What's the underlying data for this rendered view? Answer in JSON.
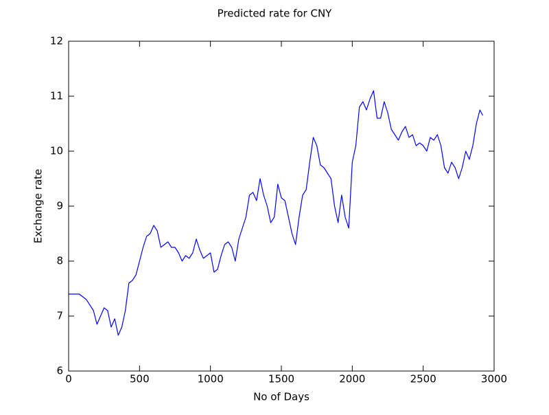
{
  "chart_data": {
    "type": "line",
    "title": "Predicted rate for CNY",
    "xlabel": "No of Days",
    "ylabel": "Exchange rate",
    "xlim": [
      0,
      3000
    ],
    "ylim": [
      6,
      12
    ],
    "xticks": [
      0,
      500,
      1000,
      1500,
      2000,
      2500,
      3000
    ],
    "yticks": [
      6,
      7,
      8,
      9,
      10,
      11,
      12
    ],
    "series": [
      {
        "color": "#0000ff",
        "x": [
          0,
          25,
          50,
          75,
          100,
          125,
          150,
          175,
          200,
          225,
          250,
          275,
          300,
          325,
          350,
          375,
          400,
          425,
          450,
          475,
          500,
          525,
          550,
          575,
          600,
          625,
          650,
          675,
          700,
          725,
          750,
          775,
          800,
          825,
          850,
          875,
          900,
          925,
          950,
          975,
          1000,
          1025,
          1050,
          1075,
          1100,
          1125,
          1150,
          1175,
          1200,
          1225,
          1250,
          1275,
          1300,
          1325,
          1350,
          1375,
          1400,
          1425,
          1450,
          1475,
          1500,
          1525,
          1550,
          1575,
          1600,
          1625,
          1650,
          1675,
          1700,
          1725,
          1750,
          1775,
          1800,
          1825,
          1850,
          1875,
          1900,
          1925,
          1950,
          1975,
          2000,
          2025,
          2050,
          2075,
          2100,
          2125,
          2150,
          2175,
          2200,
          2225,
          2250,
          2275,
          2300,
          2325,
          2350,
          2375,
          2400,
          2425,
          2450,
          2475,
          2500,
          2525,
          2550,
          2575,
          2600,
          2625,
          2650,
          2675,
          2700,
          2725,
          2750,
          2775,
          2800,
          2825,
          2850,
          2875,
          2900,
          2920
        ],
        "values": [
          7.4,
          7.4,
          7.4,
          7.4,
          7.35,
          7.3,
          7.2,
          7.1,
          6.85,
          7.0,
          7.15,
          7.1,
          6.8,
          6.95,
          6.65,
          6.8,
          7.1,
          7.6,
          7.65,
          7.75,
          8.0,
          8.25,
          8.45,
          8.5,
          8.65,
          8.55,
          8.25,
          8.3,
          8.35,
          8.25,
          8.25,
          8.15,
          8.0,
          8.1,
          8.05,
          8.15,
          8.4,
          8.2,
          8.05,
          8.1,
          8.15,
          7.8,
          7.85,
          8.1,
          8.3,
          8.35,
          8.25,
          8.0,
          8.4,
          8.6,
          8.8,
          9.2,
          9.25,
          9.1,
          9.5,
          9.2,
          9.0,
          8.7,
          8.8,
          9.4,
          9.15,
          9.1,
          8.8,
          8.5,
          8.3,
          8.8,
          9.2,
          9.3,
          9.8,
          10.25,
          10.1,
          9.75,
          9.7,
          9.6,
          9.5,
          9.0,
          8.7,
          9.2,
          8.8,
          8.6,
          9.8,
          10.1,
          10.8,
          10.9,
          10.75,
          10.95,
          11.1,
          10.6,
          10.6,
          10.9,
          10.7,
          10.4,
          10.3,
          10.2,
          10.35,
          10.45,
          10.25,
          10.3,
          10.1,
          10.15,
          10.1,
          10.0,
          10.25,
          10.2,
          10.3,
          10.1,
          9.7,
          9.6,
          9.8,
          9.7,
          9.5,
          9.7,
          10.0,
          9.85,
          10.1,
          10.5,
          10.75,
          10.65
        ]
      }
    ]
  }
}
